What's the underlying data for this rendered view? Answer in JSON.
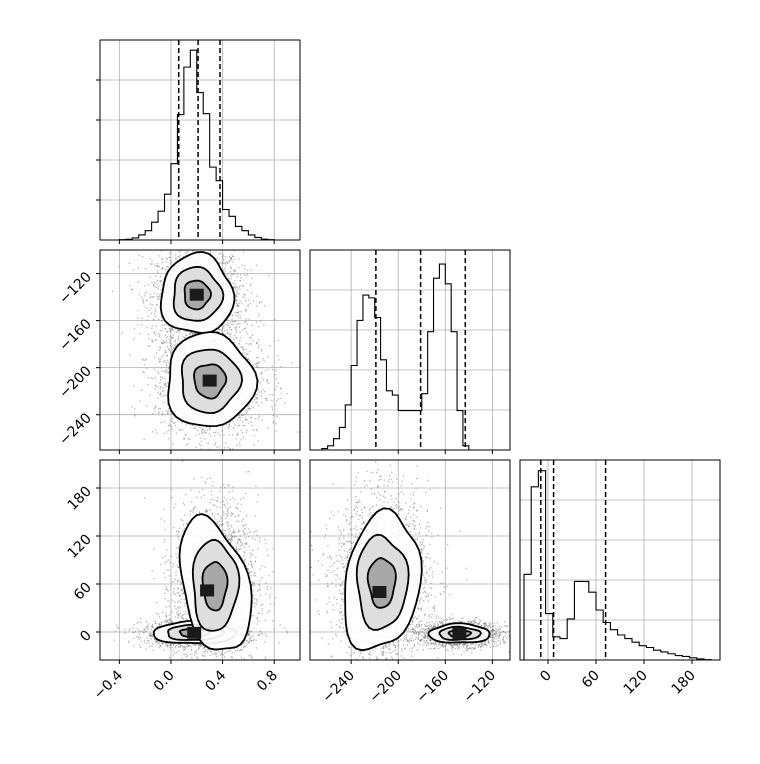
{
  "chart_data": {
    "type": "corner",
    "grid": true,
    "params": [
      {
        "xlim": [
          -0.55,
          1.0
        ],
        "xticks": [
          "−0.4",
          "0.0",
          "0.4",
          "0.8"
        ],
        "xtick_values": [
          -0.4,
          0.0,
          0.4,
          0.8
        ]
      },
      {
        "xlim": [
          -275,
          -105
        ],
        "xticks": [
          "−240",
          "−200",
          "−160",
          "−120"
        ],
        "xtick_values": [
          -240,
          -200,
          -160,
          -120
        ],
        "ylim": [
          -270,
          -100
        ],
        "yticks": [
          "−120",
          "−160",
          "−200",
          "−240"
        ],
        "ytick_values": [
          -120,
          -160,
          -200,
          -240
        ]
      },
      {
        "xlim": [
          -35,
          215
        ],
        "xticks": [
          "0",
          "60",
          "120",
          "180"
        ],
        "xtick_values": [
          0,
          60,
          120,
          180
        ],
        "ylim": [
          -35,
          215
        ],
        "yticks": [
          "180",
          "120",
          "60",
          "0"
        ],
        "ytick_values": [
          180,
          120,
          60,
          0
        ]
      }
    ],
    "marginals": [
      {
        "param": 0,
        "bin_edges": [
          -0.4,
          -0.35,
          -0.3,
          -0.25,
          -0.2,
          -0.15,
          -0.1,
          -0.05,
          0.0,
          0.05,
          0.1,
          0.15,
          0.2,
          0.25,
          0.3,
          0.35,
          0.4,
          0.45,
          0.5,
          0.55,
          0.6,
          0.65,
          0.7,
          0.75,
          0.8
        ],
        "counts": [
          0.2,
          0.4,
          1.2,
          3.0,
          5.5,
          10.5,
          17.0,
          27.0,
          45.0,
          74.0,
          102.0,
          112.0,
          87.0,
          74.5,
          43.0,
          35.0,
          18.0,
          14.0,
          8.0,
          5.5,
          3.0,
          1.5,
          0.5,
          0.2
        ],
        "ymax": 118,
        "quantiles": [
          0.06,
          0.21,
          0.38
        ]
      },
      {
        "param": 1,
        "bin_edges": [
          -265,
          -260,
          -255,
          -250,
          -245,
          -240,
          -235,
          -230,
          -225,
          -220,
          -215,
          -210,
          -205,
          -200,
          -195,
          -190,
          -185,
          -180,
          -175,
          -170,
          -165,
          -160,
          -155,
          -150,
          -145,
          -140,
          -135,
          -130,
          -125,
          -120,
          -115,
          -110
        ],
        "counts": [
          0.5,
          1.5,
          4,
          8,
          16,
          30,
          46,
          55,
          54,
          47,
          32,
          21,
          19.5,
          14,
          14,
          14,
          14,
          20,
          42,
          61,
          66,
          59,
          42,
          14,
          1.5,
          0,
          0,
          0,
          0,
          0,
          0
        ],
        "ymax": 71,
        "quantiles": [
          -219,
          -181,
          -143
        ]
      },
      {
        "param": 2,
        "bin_edges": [
          -30,
          -21,
          -12,
          -3,
          6,
          15,
          24,
          33,
          42,
          51,
          60,
          69,
          78,
          87,
          96,
          105,
          114,
          123,
          132,
          141,
          150,
          159,
          168,
          177,
          186,
          195,
          204
        ],
        "counts": [
          48,
          97,
          106,
          26,
          13,
          12,
          23,
          44,
          44,
          38,
          28,
          21,
          17,
          14,
          12,
          10,
          8,
          7,
          5.5,
          4.5,
          3.5,
          2.5,
          2,
          1.2,
          0.6,
          0.2
        ],
        "ymax": 112,
        "quantiles": [
          -9,
          7,
          72
        ]
      }
    ],
    "joint": [
      {
        "x": 0,
        "y": 1,
        "clusters": [
          {
            "mx": 0.2,
            "my": -138,
            "sx": 0.14,
            "sy": 17,
            "n": 2000
          },
          {
            "mx": 0.3,
            "my": -211,
            "sx": 0.17,
            "sy": 20,
            "n": 2000
          }
        ],
        "peaks": [
          {
            "x": 0.2,
            "y": -138
          },
          {
            "x": 0.3,
            "y": -211
          }
        ]
      },
      {
        "x": 0,
        "y": 2,
        "clusters": [
          {
            "mx": 0.18,
            "my": -1,
            "sx": 0.16,
            "sy": 7,
            "n": 1600
          },
          {
            "mx": 0.34,
            "my": 58,
            "sx": 0.13,
            "sy": 42,
            "n": 2300
          }
        ],
        "peaks": [
          {
            "x": 0.18,
            "y": -1
          },
          {
            "x": 0.28,
            "y": 52
          }
        ]
      },
      {
        "x": 1,
        "y": 2,
        "clusters": [
          {
            "mx": -148,
            "my": -2,
            "sx": 13,
            "sy": 6,
            "n": 1800
          },
          {
            "mx": -214,
            "my": 62,
            "sx": 16,
            "sy": 43,
            "n": 2300
          }
        ],
        "peaks": [
          {
            "x": -148,
            "y": -2
          },
          {
            "x": -216,
            "y": 50
          }
        ]
      }
    ]
  }
}
